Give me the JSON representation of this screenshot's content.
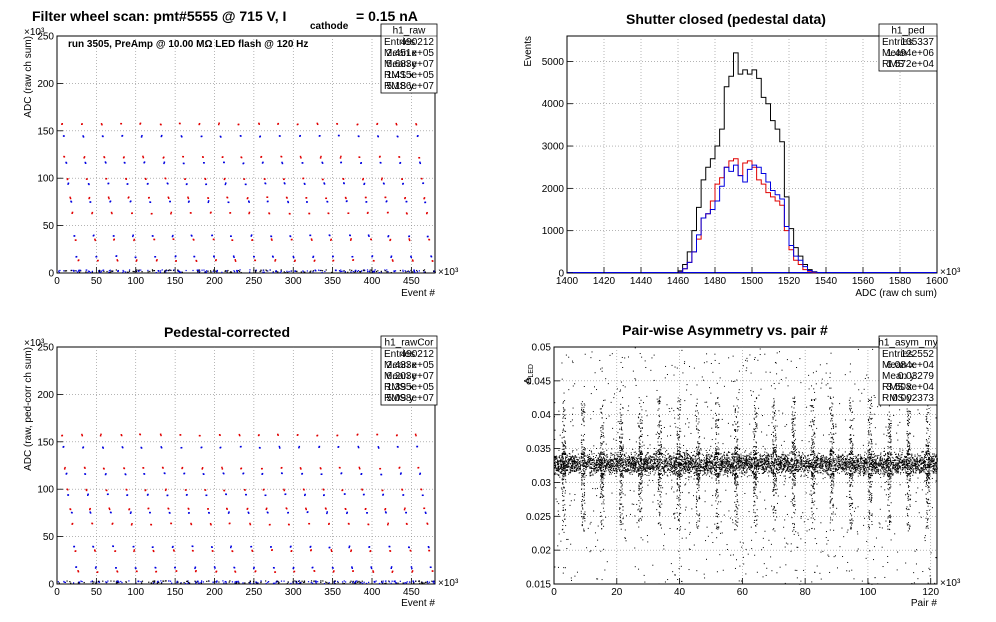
{
  "colors": {
    "red": "#e00000",
    "blue": "#0000e0",
    "black": "#000000",
    "grid": "#888888"
  },
  "chart_data": [
    {
      "id": "raw",
      "type": "scatter",
      "title": "Filter wheel scan: pmt#5555 @   715 V, I",
      "title_sub": "cathode",
      "title_tail": "= 0.15 nA",
      "annotation": "run 3505, PreAmp @ 10.00 MΩ LED flash @  120 Hz",
      "xlabel": "Event #",
      "ylabel": "ADC (raw ch sum)",
      "x_exponent": "×10³",
      "y_exponent": "×10³",
      "xlim": [
        0,
        480
      ],
      "ylim": [
        0,
        250
      ],
      "xticks": [
        0,
        50,
        100,
        150,
        200,
        250,
        300,
        350,
        400,
        450
      ],
      "yticks": [
        0,
        50,
        100,
        150,
        200,
        250
      ],
      "grid": true,
      "stats": {
        "name": "h1_raw",
        "rows": [
          [
            "Entries",
            "490212"
          ],
          [
            "Mean x",
            "2.451e+05"
          ],
          [
            "Mean y",
            "5.683e+07"
          ],
          [
            "RMS x",
            "1.415e+05"
          ],
          [
            "RMS y",
            "5.186e+07"
          ]
        ]
      },
      "levels": [
        158,
        145,
        123,
        117,
        100,
        95,
        80,
        76,
        64,
        40,
        36,
        18,
        14,
        3
      ],
      "period_k": 25
    },
    {
      "id": "ped",
      "type": "step",
      "title": "Shutter closed (pedestal data)",
      "xlabel": "ADC (raw ch sum)",
      "ylabel": "Events",
      "x_exponent": "×10³",
      "xlim": [
        1400,
        1600
      ],
      "ylim": [
        0,
        5600
      ],
      "xticks": [
        1400,
        1420,
        1440,
        1460,
        1480,
        1500,
        1520,
        1540,
        1560,
        1580,
        1600
      ],
      "yticks": [
        0,
        1000,
        2000,
        3000,
        4000,
        5000
      ],
      "grid": true,
      "stats": {
        "name": "h1_ped",
        "rows": [
          [
            "Entries",
            "105337"
          ],
          [
            "Mean",
            "1.494e+06"
          ],
          [
            "RMS",
            "1.572e+04"
          ]
        ]
      },
      "bin_edges_start": 1460,
      "bin_width": 2.5,
      "series": [
        {
          "color": "black",
          "values": [
            50,
            200,
            500,
            1000,
            1550,
            2200,
            2500,
            2700,
            3000,
            3400,
            4400,
            4650,
            5200,
            4700,
            4800,
            4700,
            4800,
            4600,
            4150,
            4000,
            3600,
            3400,
            3100,
            1800,
            1050,
            600,
            400,
            200,
            80,
            30
          ]
        },
        {
          "color": "red",
          "values": [
            20,
            100,
            250,
            500,
            800,
            1300,
            1400,
            1700,
            2100,
            2250,
            2500,
            2650,
            2700,
            2300,
            2600,
            2650,
            2500,
            2200,
            2100,
            1900,
            1800,
            1700,
            1600,
            1000,
            550,
            300,
            200,
            80,
            40,
            10
          ]
        },
        {
          "color": "blue",
          "values": [
            20,
            100,
            250,
            500,
            900,
            1300,
            1400,
            1500,
            1700,
            2050,
            2500,
            2400,
            2550,
            2300,
            2150,
            2450,
            2550,
            2500,
            2350,
            2150,
            1950,
            1850,
            1750,
            1100,
            650,
            400,
            300,
            150,
            60,
            20
          ]
        }
      ],
      "baseline_blue": true
    },
    {
      "id": "rawcor",
      "type": "scatter",
      "title": "Pedestal-corrected",
      "xlabel": "Event #",
      "ylabel": "ADC (raw, ped-corr ch sum)",
      "x_exponent": "×10³",
      "y_exponent": "×10³",
      "xlim": [
        0,
        480
      ],
      "ylim": [
        0,
        250
      ],
      "xticks": [
        0,
        50,
        100,
        150,
        200,
        250,
        300,
        350,
        400,
        450
      ],
      "yticks": [
        0,
        50,
        100,
        150,
        200,
        250
      ],
      "grid": true,
      "stats": {
        "name": "h1_rawCor",
        "rows": [
          [
            "Entries",
            "490212"
          ],
          [
            "Mean x",
            "2.433e+05"
          ],
          [
            "Mean y",
            "6.203e+07"
          ],
          [
            "RMS x",
            "1.395e+05"
          ],
          [
            "RMS y",
            "5.098e+07"
          ]
        ]
      },
      "levels": [
        158,
        145,
        123,
        117,
        100,
        95,
        80,
        76,
        64,
        40,
        36,
        18,
        14,
        3
      ],
      "period_k": 25
    },
    {
      "id": "asym",
      "type": "scatter",
      "title": "Pair-wise Asymmetry vs. pair #",
      "xlabel": "Pair #",
      "ylabel": "A_LED",
      "ylabel_main": "A",
      "ylabel_sub": "LED",
      "x_exponent": "×10³",
      "xlim": [
        0,
        122
      ],
      "ylim": [
        0.015,
        0.05
      ],
      "xticks": [
        0,
        20,
        40,
        60,
        80,
        100,
        120
      ],
      "yticks": [
        0.015,
        0.02,
        0.025,
        0.03,
        0.035,
        0.04,
        0.045,
        0.05
      ],
      "ytick_labels": [
        "0.015",
        "0.02",
        "0.025",
        "0.03",
        "0.035",
        "0.04",
        "0.045",
        "0.05"
      ],
      "grid": true,
      "stats": {
        "name": "h1_asym_my",
        "rows": [
          [
            "Entries",
            "122552"
          ],
          [
            "Mean x",
            "6.084e+04"
          ],
          [
            "Mean y",
            "0.03279"
          ],
          [
            "RMS x",
            "3.508e+04"
          ],
          [
            "RMS y",
            "0.002373"
          ]
        ]
      },
      "band_center": 0.0328,
      "band_halfwidth": 0.0014,
      "spikes_every": 6.1,
      "spike_first": 3
    }
  ]
}
